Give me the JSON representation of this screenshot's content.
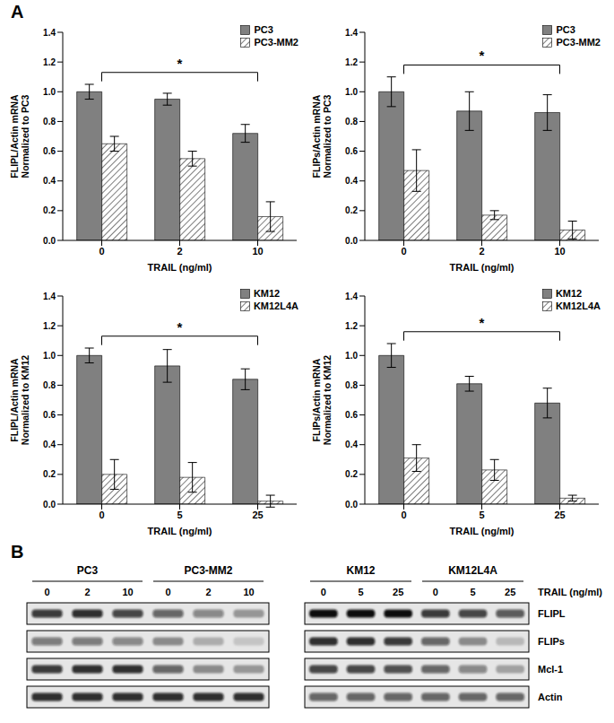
{
  "panel_labels": [
    "A",
    "B"
  ],
  "chart_data": [
    {
      "type": "bar",
      "y_label": [
        "FLIPL/Actin mRNA",
        "Normalized to PC3"
      ],
      "x_label": "TRAIL (ng/ml)",
      "categories": [
        "0",
        "2",
        "10"
      ],
      "series": [
        {
          "name": "PC3",
          "color": "#808080",
          "values": [
            1.0,
            0.95,
            0.72
          ],
          "errors": [
            0.05,
            0.04,
            0.06
          ]
        },
        {
          "name": "PC3-MM2",
          "color": "#ffffff",
          "values": [
            0.65,
            0.55,
            0.16
          ],
          "errors": [
            0.05,
            0.05,
            0.1
          ]
        }
      ],
      "ylim": [
        0,
        1.4
      ],
      "yticks": [
        {
          "value": 0,
          "label": "0.0"
        },
        0.2,
        0.4,
        0.6,
        0.8,
        {
          "value": 1,
          "label": "1.0"
        },
        1.2,
        1.4
      ],
      "grid": false,
      "legend": "top-right",
      "annotations": [
        {
          "text": "*",
          "from": "0",
          "to": "10"
        }
      ]
    },
    {
      "type": "bar",
      "y_label": [
        "FLIPs/Actin mRNA",
        "Normalized to PC3"
      ],
      "x_label": "TRAIL (ng/ml)",
      "categories": [
        "0",
        "2",
        "10"
      ],
      "series": [
        {
          "name": "PC3",
          "color": "#808080",
          "values": [
            1.0,
            0.87,
            0.86
          ],
          "errors": [
            0.1,
            0.13,
            0.12
          ]
        },
        {
          "name": "PC3-MM2",
          "color": "#ffffff",
          "values": [
            0.47,
            0.17,
            0.07
          ],
          "errors": [
            0.14,
            0.03,
            0.06
          ]
        }
      ],
      "ylim": [
        0,
        1.4
      ],
      "yticks": [
        {
          "value": 0,
          "label": "0.0"
        },
        0.2,
        0.4,
        0.6,
        0.8,
        {
          "value": 1,
          "label": "1.0"
        },
        1.2,
        1.4
      ],
      "grid": false,
      "legend": "top-right",
      "annotations": [
        {
          "text": "*",
          "from": "0",
          "to": "10"
        }
      ]
    },
    {
      "type": "bar",
      "y_label": [
        "FLIPL/Actin mRNA",
        "Normalized to KM12"
      ],
      "x_label": "TRAIL (ng/ml)",
      "categories": [
        "0",
        "5",
        "25"
      ],
      "series": [
        {
          "name": "KM12",
          "color": "#808080",
          "values": [
            1.0,
            0.93,
            0.84
          ],
          "errors": [
            0.05,
            0.11,
            0.07
          ]
        },
        {
          "name": "KM12L4A",
          "color": "#ffffff",
          "values": [
            0.2,
            0.18,
            0.02
          ],
          "errors": [
            0.1,
            0.1,
            0.04
          ]
        }
      ],
      "ylim": [
        0,
        1.4
      ],
      "yticks": [
        {
          "value": 0,
          "label": "0.0"
        },
        0.2,
        0.4,
        0.6,
        0.8,
        {
          "value": 1,
          "label": "1.0"
        },
        1.2,
        1.4
      ],
      "grid": false,
      "legend": "top-right",
      "annotations": [
        {
          "text": "*",
          "from": "0",
          "to": "25"
        }
      ]
    },
    {
      "type": "bar",
      "y_label": [
        "FLIPs/Actin mRNA",
        "Normalized to KM12"
      ],
      "x_label": "TRAIL (ng/ml)",
      "categories": [
        "0",
        "5",
        "25"
      ],
      "series": [
        {
          "name": "KM12",
          "color": "#808080",
          "values": [
            1.0,
            0.81,
            0.68
          ],
          "errors": [
            0.08,
            0.05,
            0.1
          ]
        },
        {
          "name": "KM12L4A",
          "color": "#ffffff",
          "values": [
            0.31,
            0.23,
            0.04
          ],
          "errors": [
            0.09,
            0.07,
            0.02
          ]
        }
      ],
      "ylim": [
        0,
        1.4
      ],
      "yticks": [
        {
          "value": 0,
          "label": "0.0"
        },
        0.2,
        0.4,
        0.6,
        0.8,
        {
          "value": 1,
          "label": "1.0"
        },
        1.2,
        1.4
      ],
      "grid": false,
      "legend": "top-right",
      "annotations": [
        {
          "text": "*",
          "from": "0",
          "to": "25"
        }
      ]
    }
  ],
  "blot": {
    "x_label": "TRAIL (ng/ml)",
    "rows": [
      "FLIPL",
      "FLIPs",
      "Mcl-1",
      "Actin"
    ],
    "panels": [
      {
        "groups": [
          {
            "name": "PC3",
            "lanes": [
              "0",
              "2",
              "10"
            ]
          },
          {
            "name": "PC3-MM2",
            "lanes": [
              "0",
              "2",
              "10"
            ]
          }
        ],
        "band_intensity": [
          [
            0.8,
            0.85,
            0.75,
            0.6,
            0.45,
            0.35
          ],
          [
            0.5,
            0.5,
            0.45,
            0.4,
            0.25,
            0.15
          ],
          [
            0.8,
            0.85,
            0.85,
            0.6,
            0.4,
            0.35
          ],
          [
            0.85,
            0.85,
            0.85,
            0.85,
            0.85,
            0.85
          ]
        ]
      },
      {
        "groups": [
          {
            "name": "KM12",
            "lanes": [
              "0",
              "5",
              "25"
            ]
          },
          {
            "name": "KM12L4A",
            "lanes": [
              "0",
              "5",
              "25"
            ]
          }
        ],
        "band_intensity": [
          [
            1.0,
            1.0,
            1.0,
            0.8,
            0.75,
            0.65
          ],
          [
            0.85,
            0.85,
            0.8,
            0.6,
            0.4,
            0.2
          ],
          [
            0.75,
            0.75,
            0.7,
            0.6,
            0.45,
            0.3
          ],
          [
            0.6,
            0.6,
            0.6,
            0.6,
            0.6,
            0.6
          ]
        ]
      }
    ]
  }
}
